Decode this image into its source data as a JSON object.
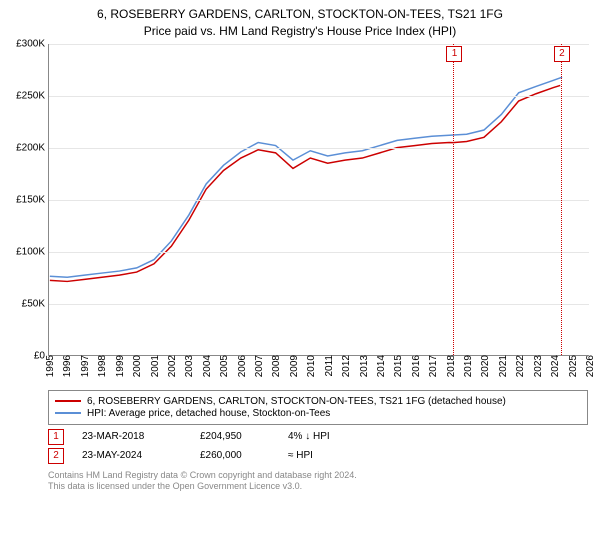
{
  "title": {
    "line1": "6, ROSEBERRY GARDENS, CARLTON, STOCKTON-ON-TEES, TS21 1FG",
    "line2": "Price paid vs. HM Land Registry's House Price Index (HPI)"
  },
  "chart": {
    "type": "line",
    "background_color": "#ffffff",
    "grid_color": "#e6e6e6",
    "axis_color": "#888888",
    "y": {
      "min": 0,
      "max": 300000,
      "ticks": [
        0,
        50000,
        100000,
        150000,
        200000,
        250000,
        300000
      ],
      "tick_labels": [
        "£0",
        "£50K",
        "£100K",
        "£150K",
        "£200K",
        "£250K",
        "£300K"
      ]
    },
    "x": {
      "min": 1995,
      "max": 2026,
      "ticks": [
        1995,
        1996,
        1997,
        1998,
        1999,
        2000,
        2001,
        2002,
        2003,
        2004,
        2005,
        2006,
        2007,
        2008,
        2009,
        2010,
        2011,
        2012,
        2013,
        2014,
        2015,
        2016,
        2017,
        2018,
        2019,
        2020,
        2021,
        2022,
        2023,
        2024,
        2025,
        2026
      ]
    },
    "series": [
      {
        "id": "price_paid",
        "label": "6, ROSEBERRY GARDENS, CARLTON, STOCKTON-ON-TEES, TS21 1FG (detached house)",
        "color": "#cc0000",
        "line_width": 1.5,
        "points": [
          [
            1995,
            72000
          ],
          [
            1996,
            71000
          ],
          [
            1997,
            73000
          ],
          [
            1998,
            75000
          ],
          [
            1999,
            77000
          ],
          [
            2000,
            80000
          ],
          [
            2001,
            88000
          ],
          [
            2002,
            105000
          ],
          [
            2003,
            130000
          ],
          [
            2004,
            160000
          ],
          [
            2005,
            178000
          ],
          [
            2006,
            190000
          ],
          [
            2007,
            198000
          ],
          [
            2008,
            195000
          ],
          [
            2009,
            180000
          ],
          [
            2010,
            190000
          ],
          [
            2011,
            185000
          ],
          [
            2012,
            188000
          ],
          [
            2013,
            190000
          ],
          [
            2014,
            195000
          ],
          [
            2015,
            200000
          ],
          [
            2016,
            202000
          ],
          [
            2017,
            204000
          ],
          [
            2018,
            205000
          ],
          [
            2018.22,
            204950
          ],
          [
            2019,
            206000
          ],
          [
            2020,
            210000
          ],
          [
            2021,
            225000
          ],
          [
            2022,
            245000
          ],
          [
            2023,
            252000
          ],
          [
            2024,
            258000
          ],
          [
            2024.39,
            260000
          ]
        ]
      },
      {
        "id": "hpi",
        "label": "HPI: Average price, detached house, Stockton-on-Tees",
        "color": "#5b8fd6",
        "line_width": 1.5,
        "points": [
          [
            1995,
            76000
          ],
          [
            1996,
            75000
          ],
          [
            1997,
            77000
          ],
          [
            1998,
            79000
          ],
          [
            1999,
            81000
          ],
          [
            2000,
            84000
          ],
          [
            2001,
            92000
          ],
          [
            2002,
            110000
          ],
          [
            2003,
            135000
          ],
          [
            2004,
            165000
          ],
          [
            2005,
            183000
          ],
          [
            2006,
            196000
          ],
          [
            2007,
            205000
          ],
          [
            2008,
            202000
          ],
          [
            2009,
            188000
          ],
          [
            2010,
            197000
          ],
          [
            2011,
            192000
          ],
          [
            2012,
            195000
          ],
          [
            2013,
            197000
          ],
          [
            2014,
            202000
          ],
          [
            2015,
            207000
          ],
          [
            2016,
            209000
          ],
          [
            2017,
            211000
          ],
          [
            2018,
            212000
          ],
          [
            2019,
            213000
          ],
          [
            2020,
            217000
          ],
          [
            2021,
            232000
          ],
          [
            2022,
            253000
          ],
          [
            2023,
            259000
          ],
          [
            2024,
            265000
          ],
          [
            2024.5,
            268000
          ]
        ]
      }
    ],
    "markers": [
      {
        "n": "1",
        "x": 2018.22
      },
      {
        "n": "2",
        "x": 2024.39
      }
    ]
  },
  "legend": {
    "items": [
      {
        "color": "#cc0000",
        "label": "6, ROSEBERRY GARDENS, CARLTON, STOCKTON-ON-TEES, TS21 1FG (detached house)"
      },
      {
        "color": "#5b8fd6",
        "label": "HPI: Average price, detached house, Stockton-on-Tees"
      }
    ]
  },
  "sales": [
    {
      "n": "1",
      "date": "23-MAR-2018",
      "price": "£204,950",
      "delta": "4% ↓ HPI"
    },
    {
      "n": "2",
      "date": "23-MAY-2024",
      "price": "£260,000",
      "delta": "≈ HPI"
    }
  ],
  "footer": {
    "line1": "Contains HM Land Registry data © Crown copyright and database right 2024.",
    "line2": "This data is licensed under the Open Government Licence v3.0."
  }
}
